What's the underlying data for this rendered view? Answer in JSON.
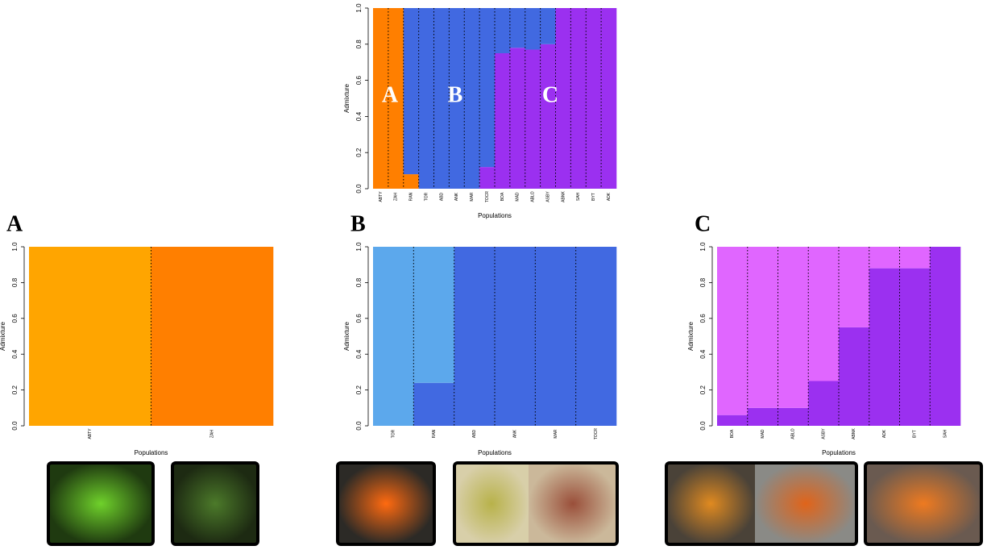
{
  "chart_data": [
    {
      "type": "bar",
      "stacked": true,
      "y_label": "Admixture",
      "x_label": "Populations",
      "annotations": [
        "A",
        "B",
        "C"
      ],
      "categories": [
        "ABTY",
        "ZAH",
        "RAN",
        "TOR",
        "ABD",
        "ANK",
        "MAR",
        "TOCR",
        "BOA",
        "MAD",
        "ABLO",
        "ASBY",
        "ABNK",
        "SAH",
        "BYT",
        "ADK"
      ],
      "series": [
        {
          "color": "#ff7f00",
          "values": [
            1,
            1,
            0.08,
            0,
            0,
            0,
            0,
            0,
            0,
            0,
            0,
            0,
            0,
            0,
            0,
            0
          ]
        },
        {
          "color": "#9b30f0",
          "values": [
            0,
            0,
            0,
            0,
            0,
            0,
            0,
            0.12,
            0.75,
            0.78,
            0.77,
            0.8,
            1,
            1,
            1,
            1
          ]
        },
        {
          "color": "#4169e1",
          "values": [
            0,
            0,
            0.92,
            1,
            1,
            1,
            1,
            0.88,
            0.25,
            0.22,
            0.23,
            0.2,
            0,
            0,
            0,
            0
          ]
        }
      ],
      "ylim": [
        0,
        1
      ],
      "yticks": [
        {
          "value": 0,
          "label": "0.0"
        },
        {
          "value": 0.2,
          "label": "0.2"
        },
        {
          "value": 0.4,
          "label": "0.4"
        },
        {
          "value": 0.6,
          "label": "0.6"
        },
        {
          "value": 0.8,
          "label": "0.8"
        },
        {
          "value": 1,
          "label": "1.0"
        }
      ]
    },
    {
      "type": "bar",
      "stacked": true,
      "title": "A",
      "y_label": "Admixture",
      "x_label": "Populations",
      "categories": [
        "ABTY",
        "ZAH"
      ],
      "series": [
        {
          "color": "#ffa500",
          "values": [
            1,
            0
          ]
        },
        {
          "color": "#ff7f00",
          "values": [
            0,
            1
          ]
        }
      ],
      "ylim": [
        0,
        1
      ],
      "yticks": [
        {
          "value": 0,
          "label": "0.0"
        },
        {
          "value": 0.2,
          "label": "0.2"
        },
        {
          "value": 0.4,
          "label": "0.4"
        },
        {
          "value": 0.6,
          "label": "0.6"
        },
        {
          "value": 0.8,
          "label": "0.8"
        },
        {
          "value": 1,
          "label": "1.0"
        }
      ]
    },
    {
      "type": "bar",
      "stacked": true,
      "title": "B",
      "y_label": "Admixture",
      "x_label": "Populations",
      "categories": [
        "TOR",
        "RAN",
        "ABD",
        "ANK",
        "MAR",
        "TOCR"
      ],
      "series": [
        {
          "color": "#4169e1",
          "values": [
            0,
            0.24,
            1,
            1,
            1,
            1
          ]
        },
        {
          "color": "#5ca8ec",
          "values": [
            1,
            0.76,
            0,
            0,
            0,
            0
          ]
        }
      ],
      "ylim": [
        0,
        1
      ],
      "yticks": [
        {
          "value": 0,
          "label": "0.0"
        },
        {
          "value": 0.2,
          "label": "0.2"
        },
        {
          "value": 0.4,
          "label": "0.4"
        },
        {
          "value": 0.6,
          "label": "0.6"
        },
        {
          "value": 0.8,
          "label": "0.8"
        },
        {
          "value": 1,
          "label": "1.0"
        }
      ]
    },
    {
      "type": "bar",
      "stacked": true,
      "title": "C",
      "y_label": "Admixture",
      "x_label": "Populations",
      "categories": [
        "BOA",
        "MAD",
        "ABLO",
        "ASBY",
        "ABNK",
        "ADK",
        "BYT",
        "SAH"
      ],
      "series": [
        {
          "color": "#9b30f0",
          "values": [
            0.06,
            0.1,
            0.1,
            0.25,
            0.55,
            0.88,
            0.88,
            1
          ]
        },
        {
          "color": "#e066ff",
          "values": [
            0.94,
            0.9,
            0.9,
            0.75,
            0.45,
            0.12,
            0.12,
            0
          ]
        }
      ],
      "ylim": [
        0,
        1
      ],
      "yticks": [
        {
          "value": 0,
          "label": "0.0"
        },
        {
          "value": 0.2,
          "label": "0.2"
        },
        {
          "value": 0.4,
          "label": "0.4"
        },
        {
          "value": 0.6,
          "label": "0.6"
        },
        {
          "value": 0.8,
          "label": "0.8"
        },
        {
          "value": 1,
          "label": "1.0"
        }
      ]
    }
  ]
}
